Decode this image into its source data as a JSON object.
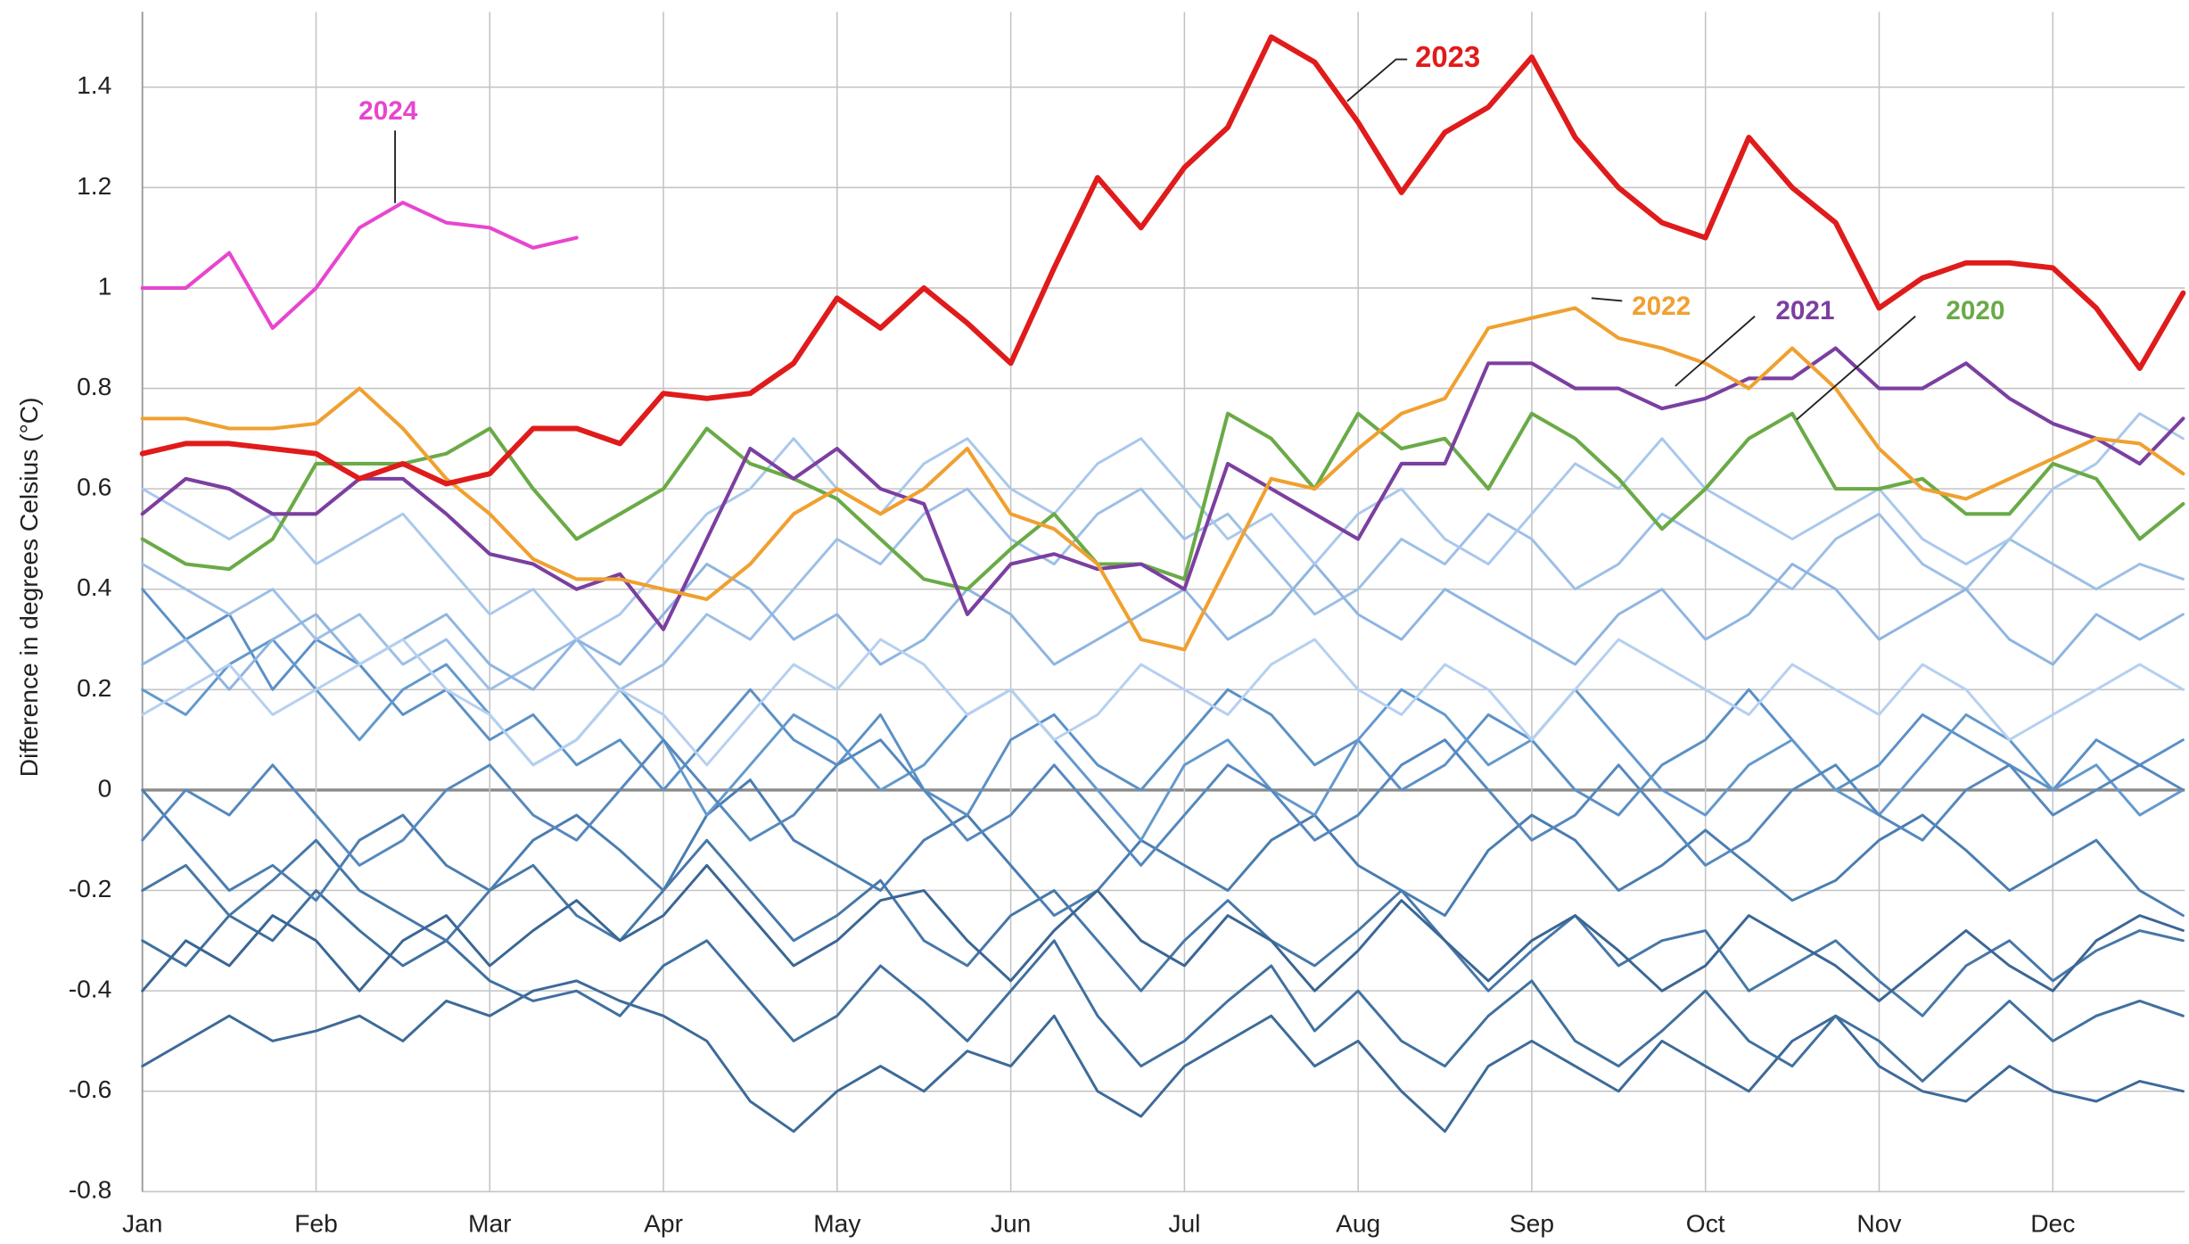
{
  "chart_data": {
    "type": "line",
    "y_label": "Difference in degrees Celsius (°C)",
    "x": [
      0,
      0.25,
      0.5,
      0.75,
      1,
      1.25,
      1.5,
      1.75,
      2,
      2.25,
      2.5,
      2.75,
      3,
      3.25,
      3.5,
      3.75,
      4,
      4.25,
      4.5,
      4.75,
      5,
      5.25,
      5.5,
      5.75,
      6,
      6.25,
      6.5,
      6.75,
      7,
      7.25,
      7.5,
      7.75,
      8,
      8.25,
      8.5,
      8.75,
      9,
      9.25,
      9.5,
      9.75,
      10,
      10.25,
      10.5,
      10.75,
      11,
      11.25,
      11.5,
      11.75
    ],
    "xlim": [
      0,
      11.76
    ],
    "xticks": [
      {
        "value": 0,
        "label": "Jan"
      },
      {
        "value": 1,
        "label": "Feb"
      },
      {
        "value": 2,
        "label": "Mar"
      },
      {
        "value": 3,
        "label": "Apr"
      },
      {
        "value": 4,
        "label": "May"
      },
      {
        "value": 5,
        "label": "Jun"
      },
      {
        "value": 6,
        "label": "Jul"
      },
      {
        "value": 7,
        "label": "Aug"
      },
      {
        "value": 8,
        "label": "Sep"
      },
      {
        "value": 9,
        "label": "Oct"
      },
      {
        "value": 10,
        "label": "Nov"
      },
      {
        "value": 11,
        "label": "Dec"
      }
    ],
    "ylim": [
      -0.8,
      1.55
    ],
    "yticks": [
      -0.8,
      -0.6,
      -0.4,
      -0.2,
      0,
      0.2,
      0.4,
      0.6,
      0.8,
      1,
      1.2,
      1.4
    ],
    "grid": true,
    "series": [
      {
        "color": "#3d6a98",
        "values": [
          -0.55,
          -0.5,
          -0.45,
          -0.5,
          -0.48,
          -0.45,
          -0.5,
          -0.42,
          -0.45,
          -0.4,
          -0.38,
          -0.42,
          -0.45,
          -0.5,
          -0.62,
          -0.68,
          -0.6,
          -0.55,
          -0.6,
          -0.52,
          -0.55,
          -0.45,
          -0.6,
          -0.65,
          -0.55,
          -0.5,
          -0.45,
          -0.55,
          -0.5,
          -0.6,
          -0.68,
          -0.55,
          -0.5,
          -0.55,
          -0.6,
          -0.5,
          -0.55,
          -0.6,
          -0.5,
          -0.45,
          -0.55,
          -0.6,
          -0.62,
          -0.55,
          -0.6,
          -0.62,
          -0.58,
          -0.6
        ]
      },
      {
        "color": "#40709f",
        "values": [
          -0.3,
          -0.35,
          -0.25,
          -0.3,
          -0.2,
          -0.28,
          -0.35,
          -0.3,
          -0.38,
          -0.42,
          -0.4,
          -0.45,
          -0.35,
          -0.3,
          -0.4,
          -0.5,
          -0.45,
          -0.35,
          -0.42,
          -0.5,
          -0.4,
          -0.3,
          -0.45,
          -0.55,
          -0.5,
          -0.42,
          -0.35,
          -0.48,
          -0.4,
          -0.5,
          -0.55,
          -0.45,
          -0.38,
          -0.5,
          -0.55,
          -0.48,
          -0.4,
          -0.5,
          -0.55,
          -0.45,
          -0.5,
          -0.58,
          -0.5,
          -0.42,
          -0.5,
          -0.45,
          -0.42,
          -0.45
        ]
      },
      {
        "color": "#4677a8",
        "values": [
          -0.2,
          -0.15,
          -0.25,
          -0.18,
          -0.1,
          -0.2,
          -0.25,
          -0.3,
          -0.2,
          -0.15,
          -0.25,
          -0.3,
          -0.2,
          -0.1,
          -0.2,
          -0.3,
          -0.25,
          -0.18,
          -0.3,
          -0.35,
          -0.25,
          -0.2,
          -0.3,
          -0.4,
          -0.3,
          -0.22,
          -0.3,
          -0.35,
          -0.28,
          -0.2,
          -0.3,
          -0.4,
          -0.32,
          -0.25,
          -0.35,
          -0.3,
          -0.28,
          -0.4,
          -0.35,
          -0.3,
          -0.38,
          -0.45,
          -0.35,
          -0.3,
          -0.38,
          -0.32,
          -0.28,
          -0.3
        ]
      },
      {
        "color": "#4a7db0",
        "values": [
          0,
          -0.1,
          -0.2,
          -0.15,
          -0.22,
          -0.1,
          -0.05,
          -0.15,
          -0.2,
          -0.1,
          -0.05,
          -0.12,
          -0.2,
          -0.05,
          0.02,
          -0.1,
          -0.15,
          -0.2,
          -0.1,
          -0.05,
          -0.15,
          -0.25,
          -0.2,
          -0.1,
          -0.15,
          -0.2,
          -0.1,
          -0.05,
          -0.15,
          -0.2,
          -0.25,
          -0.12,
          -0.05,
          -0.1,
          -0.2,
          -0.15,
          -0.08,
          -0.15,
          -0.22,
          -0.18,
          -0.1,
          -0.05,
          -0.12,
          -0.2,
          -0.15,
          -0.1,
          -0.2,
          -0.25
        ]
      },
      {
        "color": "#3a6694",
        "values": [
          -0.4,
          -0.3,
          -0.35,
          -0.25,
          -0.3,
          -0.4,
          -0.3,
          -0.25,
          -0.35,
          -0.28,
          -0.22,
          -0.3,
          -0.25,
          -0.15,
          -0.25,
          -0.35,
          -0.3,
          -0.22,
          -0.2,
          -0.3,
          -0.38,
          -0.28,
          -0.2,
          -0.3,
          -0.35,
          -0.25,
          -0.3,
          -0.4,
          -0.32,
          -0.22,
          -0.3,
          -0.38,
          -0.3,
          -0.25,
          -0.32,
          -0.4,
          -0.35,
          -0.25,
          -0.3,
          -0.35,
          -0.42,
          -0.35,
          -0.28,
          -0.35,
          -0.4,
          -0.3,
          -0.25,
          -0.28
        ]
      },
      {
        "color": "#5b90c6",
        "values": [
          0.4,
          0.3,
          0.35,
          0.2,
          0.3,
          0.25,
          0.15,
          0.2,
          0.1,
          0.15,
          0.05,
          0.1,
          0,
          0.1,
          0.2,
          0.1,
          0.05,
          0.15,
          0,
          -0.05,
          0.1,
          0.15,
          0.05,
          0,
          0.1,
          0.2,
          0.15,
          0.05,
          0.1,
          0,
          0.05,
          0.15,
          0.1,
          0,
          -0.05,
          0.05,
          0.1,
          0.2,
          0.1,
          0,
          0.05,
          0.15,
          0.1,
          0.05,
          0,
          0.1,
          0.05,
          0.1
        ]
      },
      {
        "color": "#6399cd",
        "values": [
          0.2,
          0.15,
          0.25,
          0.3,
          0.2,
          0.1,
          0.2,
          0.25,
          0.15,
          0.05,
          0.1,
          0.2,
          0.1,
          -0.05,
          0.05,
          0.15,
          0.1,
          0,
          0.05,
          0.15,
          0.2,
          0.1,
          0,
          -0.1,
          0.05,
          0.1,
          0,
          -0.05,
          0.1,
          0.2,
          0.15,
          0.05,
          0.1,
          0.2,
          0.1,
          0,
          -0.05,
          0.05,
          0.1,
          0,
          -0.05,
          0.05,
          0.15,
          0.1,
          0,
          0.05,
          -0.05,
          0
        ]
      },
      {
        "color": "#5688bd",
        "values": [
          -0.1,
          0,
          -0.05,
          0.05,
          -0.05,
          -0.15,
          -0.1,
          0,
          0.05,
          -0.05,
          -0.1,
          0,
          0.1,
          0,
          -0.1,
          -0.05,
          0.05,
          0.1,
          0,
          -0.1,
          -0.05,
          0.05,
          -0.05,
          -0.15,
          -0.05,
          0.05,
          0,
          -0.1,
          -0.05,
          0.05,
          0.1,
          0,
          -0.1,
          -0.05,
          0.05,
          -0.05,
          -0.15,
          -0.1,
          0,
          0.05,
          -0.05,
          -0.1,
          0,
          0.05,
          -0.05,
          0,
          0.05,
          0
        ]
      },
      {
        "color": "#9dbfe6",
        "values": [
          0.45,
          0.4,
          0.35,
          0.4,
          0.3,
          0.35,
          0.25,
          0.3,
          0.2,
          0.25,
          0.3,
          0.2,
          0.25,
          0.35,
          0.3,
          0.4,
          0.5,
          0.45,
          0.55,
          0.6,
          0.5,
          0.45,
          0.55,
          0.6,
          0.5,
          0.55,
          0.45,
          0.35,
          0.4,
          0.5,
          0.45,
          0.55,
          0.5,
          0.4,
          0.45,
          0.55,
          0.5,
          0.45,
          0.4,
          0.5,
          0.55,
          0.45,
          0.4,
          0.5,
          0.45,
          0.4,
          0.45,
          0.42
        ]
      },
      {
        "color": "#8fb5e0",
        "values": [
          0.25,
          0.3,
          0.2,
          0.3,
          0.35,
          0.25,
          0.3,
          0.35,
          0.25,
          0.2,
          0.3,
          0.25,
          0.35,
          0.45,
          0.4,
          0.3,
          0.35,
          0.25,
          0.3,
          0.4,
          0.35,
          0.25,
          0.3,
          0.35,
          0.4,
          0.3,
          0.35,
          0.45,
          0.35,
          0.3,
          0.4,
          0.35,
          0.3,
          0.25,
          0.35,
          0.4,
          0.3,
          0.35,
          0.45,
          0.4,
          0.3,
          0.35,
          0.4,
          0.3,
          0.25,
          0.35,
          0.3,
          0.35
        ]
      },
      {
        "color": "#a9c8ec",
        "values": [
          0.6,
          0.55,
          0.5,
          0.55,
          0.45,
          0.5,
          0.55,
          0.45,
          0.35,
          0.4,
          0.3,
          0.35,
          0.45,
          0.55,
          0.6,
          0.7,
          0.6,
          0.55,
          0.65,
          0.7,
          0.6,
          0.55,
          0.65,
          0.7,
          0.6,
          0.5,
          0.55,
          0.45,
          0.55,
          0.6,
          0.5,
          0.45,
          0.55,
          0.65,
          0.6,
          0.7,
          0.6,
          0.55,
          0.5,
          0.55,
          0.6,
          0.5,
          0.45,
          0.5,
          0.6,
          0.65,
          0.75,
          0.7
        ]
      },
      {
        "color": "#b5d0f0",
        "values": [
          0.15,
          0.2,
          0.25,
          0.15,
          0.2,
          0.25,
          0.3,
          0.2,
          0.15,
          0.05,
          0.1,
          0.2,
          0.15,
          0.05,
          0.15,
          0.25,
          0.2,
          0.3,
          0.25,
          0.15,
          0.2,
          0.1,
          0.15,
          0.25,
          0.2,
          0.15,
          0.25,
          0.3,
          0.2,
          0.15,
          0.25,
          0.2,
          0.1,
          0.2,
          0.3,
          0.25,
          0.2,
          0.15,
          0.25,
          0.2,
          0.15,
          0.25,
          0.2,
          0.1,
          0.15,
          0.2,
          0.25,
          0.2
        ]
      },
      {
        "name": "2020",
        "color": "#6aaa47",
        "values": [
          0.5,
          0.45,
          0.44,
          0.5,
          0.65,
          0.65,
          0.65,
          0.67,
          0.72,
          0.6,
          0.5,
          0.55,
          0.6,
          0.72,
          0.65,
          0.62,
          0.58,
          0.5,
          0.42,
          0.4,
          0.48,
          0.55,
          0.45,
          0.45,
          0.42,
          0.75,
          0.7,
          0.6,
          0.75,
          0.68,
          0.7,
          0.6,
          0.75,
          0.7,
          0.62,
          0.52,
          0.6,
          0.7,
          0.75,
          0.6,
          0.6,
          0.62,
          0.55,
          0.55,
          0.65,
          0.62,
          0.5,
          0.57
        ]
      },
      {
        "name": "2021",
        "color": "#7b3fa0",
        "values": [
          0.55,
          0.62,
          0.6,
          0.55,
          0.55,
          0.62,
          0.62,
          0.55,
          0.47,
          0.45,
          0.4,
          0.43,
          0.32,
          0.5,
          0.68,
          0.62,
          0.68,
          0.6,
          0.57,
          0.35,
          0.45,
          0.47,
          0.44,
          0.45,
          0.4,
          0.65,
          0.6,
          0.55,
          0.5,
          0.65,
          0.65,
          0.85,
          0.85,
          0.8,
          0.8,
          0.76,
          0.78,
          0.82,
          0.82,
          0.88,
          0.8,
          0.8,
          0.85,
          0.78,
          0.73,
          0.7,
          0.65,
          0.74
        ]
      },
      {
        "name": "2022",
        "color": "#f0a030",
        "values": [
          0.74,
          0.74,
          0.72,
          0.72,
          0.73,
          0.8,
          0.72,
          0.62,
          0.55,
          0.46,
          0.42,
          0.42,
          0.4,
          0.38,
          0.45,
          0.55,
          0.6,
          0.55,
          0.6,
          0.68,
          0.55,
          0.52,
          0.45,
          0.3,
          0.28,
          0.45,
          0.62,
          0.6,
          0.68,
          0.75,
          0.78,
          0.92,
          0.94,
          0.96,
          0.9,
          0.88,
          0.85,
          0.8,
          0.88,
          0.8,
          0.68,
          0.6,
          0.58,
          0.62,
          0.66,
          0.7,
          0.69,
          0.63
        ]
      },
      {
        "name": "2024",
        "color": "#e845cf",
        "values": [
          1.0,
          1.0,
          1.07,
          0.92,
          1.0,
          1.12,
          1.17,
          1.13,
          1.12,
          1.08,
          1.1,
          null,
          null,
          null,
          null,
          null,
          null,
          null,
          null,
          null,
          null,
          null,
          null,
          null,
          null,
          null,
          null,
          null,
          null,
          null,
          null,
          null,
          null,
          null,
          null,
          null,
          null,
          null,
          null,
          null,
          null,
          null,
          null,
          null,
          null,
          null,
          null,
          null
        ]
      },
      {
        "name": "2023",
        "color": "#e01b1b",
        "values": [
          0.67,
          0.69,
          0.69,
          0.68,
          0.67,
          0.62,
          0.65,
          0.61,
          0.63,
          0.72,
          0.72,
          0.69,
          0.79,
          0.78,
          0.79,
          0.85,
          0.98,
          0.92,
          1.0,
          0.93,
          0.85,
          1.04,
          1.22,
          1.12,
          1.24,
          1.32,
          1.5,
          1.45,
          1.33,
          1.19,
          1.31,
          1.36,
          1.46,
          1.3,
          1.2,
          1.13,
          1.1,
          1.3,
          1.2,
          1.13,
          0.96,
          1.02,
          1.05,
          1.05,
          1.04,
          0.96,
          0.84,
          0.99
        ]
      }
    ]
  }
}
